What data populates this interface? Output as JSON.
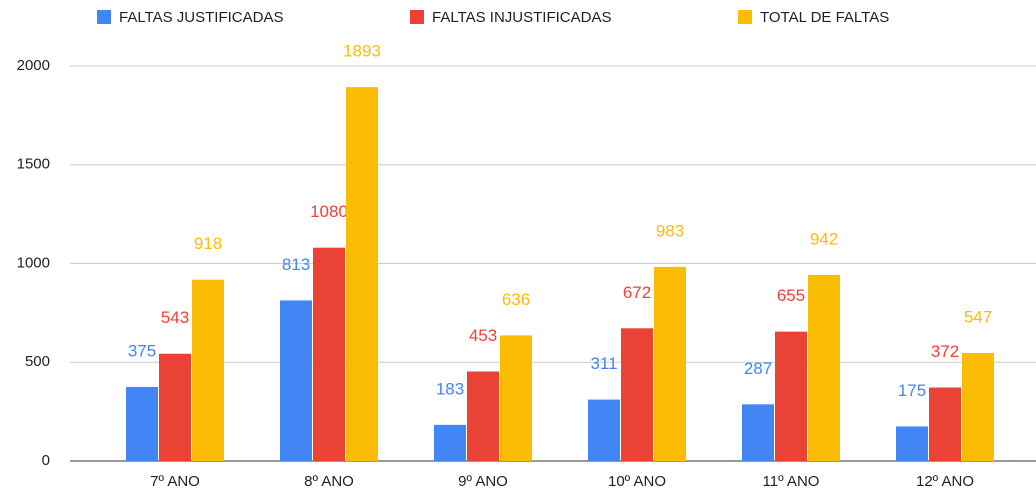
{
  "chart_data": {
    "type": "bar",
    "categories": [
      "7º ANO",
      "8º ANO",
      "9º ANO",
      "10º ANO",
      "11º ANO",
      "12º ANO"
    ],
    "series": [
      {
        "name": "FALTAS JUSTIFICADAS",
        "color": "#4285f4",
        "values": [
          375,
          813,
          183,
          311,
          287,
          175
        ]
      },
      {
        "name": "FALTAS INJUSTIFICADAS",
        "color": "#ea4335",
        "values": [
          543,
          1080,
          453,
          672,
          655,
          372
        ]
      },
      {
        "name": "TOTAL DE FALTAS",
        "color": "#fbbc04",
        "values": [
          918,
          1893,
          636,
          983,
          942,
          547
        ]
      }
    ],
    "ylim": [
      0,
      2000
    ],
    "yticks": [
      0,
      500,
      1000,
      1500,
      2000
    ],
    "grid": true,
    "legend": "top"
  }
}
